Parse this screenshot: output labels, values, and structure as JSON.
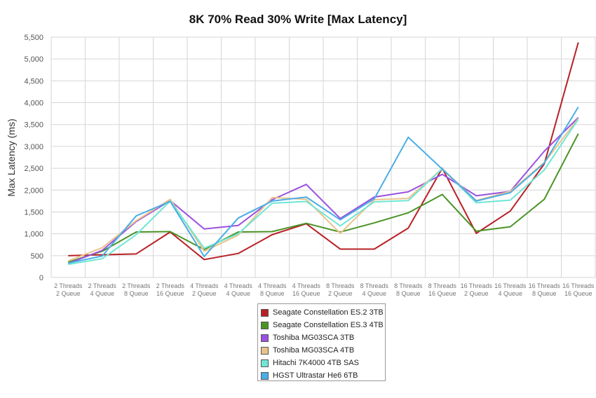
{
  "chart_data": {
    "type": "line",
    "title": "8K 70% Read 30% Write [Max Latency]",
    "xlabel": "",
    "ylabel": "Max Latency (ms)",
    "ylim": [
      0,
      5500
    ],
    "yticks": [
      "0",
      "500",
      "1,000",
      "1,500",
      "2,000",
      "2,500",
      "3,000",
      "3,500",
      "4,000",
      "4,500",
      "5,000",
      "5,500"
    ],
    "ytick_values": [
      0,
      500,
      1000,
      1500,
      2000,
      2500,
      3000,
      3500,
      4000,
      4500,
      5000,
      5500
    ],
    "grid": true,
    "legend_position": "bottom-center",
    "categories": [
      {
        "line1": "2 Threads",
        "line2": "2 Queue"
      },
      {
        "line1": "2 Threads",
        "line2": "4 Queue"
      },
      {
        "line1": "2 Threads",
        "line2": "8 Queue"
      },
      {
        "line1": "2 Threads",
        "line2": "16 Queue"
      },
      {
        "line1": "4 Threads",
        "line2": "2 Queue"
      },
      {
        "line1": "4 Threads",
        "line2": "4 Queue"
      },
      {
        "line1": "4 Threads",
        "line2": "8 Queue"
      },
      {
        "line1": "4 Threads",
        "line2": "16 Queue"
      },
      {
        "line1": "8 Threads",
        "line2": "2 Queue"
      },
      {
        "line1": "8 Threads",
        "line2": "4 Queue"
      },
      {
        "line1": "8 Threads",
        "line2": "8 Queue"
      },
      {
        "line1": "8 Threads",
        "line2": "16 Queue"
      },
      {
        "line1": "16 Threads",
        "line2": "2 Queue"
      },
      {
        "line1": "16 Threads",
        "line2": "4 Queue"
      },
      {
        "line1": "16 Threads",
        "line2": "8 Queue"
      },
      {
        "line1": "16 Threads",
        "line2": "16 Queue"
      }
    ],
    "series": [
      {
        "name": "Seagate Constellation ES.2 3TB",
        "color": "#b82025",
        "values": [
          500,
          520,
          540,
          1040,
          410,
          550,
          980,
          1230,
          650,
          650,
          1130,
          2500,
          1010,
          1520,
          2600,
          5380
        ]
      },
      {
        "name": "Seagate Constellation ES.3 4TB",
        "color": "#4a9327",
        "values": [
          350,
          600,
          1040,
          1050,
          640,
          1040,
          1050,
          1240,
          1040,
          1250,
          1480,
          1900,
          1060,
          1160,
          1790,
          3290
        ]
      },
      {
        "name": "Toshiba MG03SCA 3TB",
        "color": "#9b51e0",
        "values": [
          320,
          620,
          1280,
          1760,
          1110,
          1190,
          1780,
          2130,
          1350,
          1840,
          1960,
          2360,
          1870,
          1970,
          2890,
          3660
        ]
      },
      {
        "name": "Toshiba MG03SCA 4TB",
        "color": "#eac38a",
        "values": [
          380,
          680,
          1300,
          1790,
          600,
          970,
          1830,
          1790,
          1010,
          1780,
          1810,
          2490,
          1760,
          1970,
          2630,
          3640
        ]
      },
      {
        "name": "Hitachi 7K4000 4TB SAS",
        "color": "#6fe6d6",
        "values": [
          300,
          430,
          980,
          1750,
          670,
          1000,
          1700,
          1740,
          1180,
          1730,
          1760,
          2490,
          1710,
          1770,
          2460,
          3620
        ]
      },
      {
        "name": "HGST Ultrastar He6 6TB",
        "color": "#4aaee6",
        "values": [
          330,
          490,
          1410,
          1740,
          480,
          1360,
          1750,
          1840,
          1320,
          1800,
          3210,
          2480,
          1750,
          1940,
          2620,
          3900
        ]
      }
    ]
  }
}
